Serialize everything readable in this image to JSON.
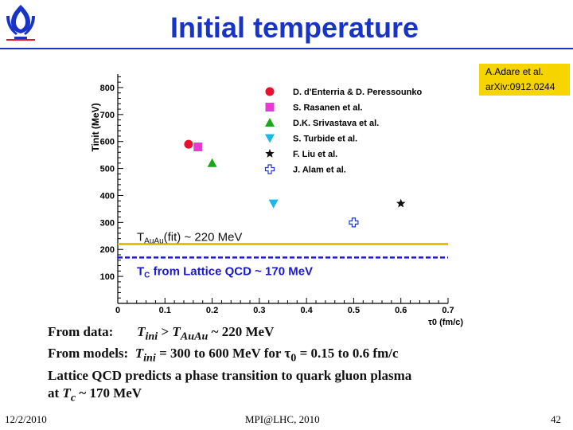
{
  "slide": {
    "title": "Initial temperature",
    "reference": {
      "line1": "A.Adare et al.",
      "line2": "arXiv:0912.0244"
    },
    "footer": {
      "date": "12/2/2010",
      "center": "MPI@LHC, 2010",
      "page": "42"
    },
    "summary": {
      "line1": {
        "a": "From data:",
        "b": "T",
        "b_sub": "ini",
        "c": " > ",
        "d": "T",
        "d_sub": "AuAu",
        "e": " ~ 220 MeV"
      },
      "line2": {
        "a": "From models:",
        "b": "T",
        "b_sub": "ini",
        "c": " = 300 to 600 MeV for ",
        "d": "τ",
        "d_sub": "0",
        "e": " = 0.15 to 0.6 fm/c"
      },
      "line3": "Lattice QCD predicts a phase transition to quark gluon plasma",
      "line4": {
        "a": "at ",
        "b": "T",
        "b_sub": "c",
        "c": " ~ 170 MeV"
      }
    },
    "colors": {
      "title": "#1733c8",
      "reference_box": "#f5d400",
      "fit_line": "#e6c200",
      "lattice_line": "#1a1acc"
    }
  },
  "chart_data": {
    "type": "scatter",
    "xlabel": "τ0 (fm/c)",
    "ylabel": "Tinit (MeV)",
    "xlim": [
      0,
      0.7
    ],
    "ylim": [
      0,
      850
    ],
    "xticks": [
      "0",
      "0.1",
      "0.2",
      "0.3",
      "0.4",
      "0.5",
      "0.6",
      "0.7"
    ],
    "yticks": [
      100,
      200,
      300,
      400,
      500,
      600,
      700,
      800
    ],
    "legend_position": "top-right",
    "series": [
      {
        "name": "D. d'Enterria & D. Peressounko",
        "marker": "circle",
        "color": "#e8102a",
        "x": [
          0.15
        ],
        "y": [
          590
        ]
      },
      {
        "name": "S. Rasanen et al.",
        "marker": "square",
        "color": "#e83ad0",
        "x": [
          0.17
        ],
        "y": [
          580
        ]
      },
      {
        "name": "D.K. Srivastava et al.",
        "marker": "triangle-up",
        "color": "#1aa81a",
        "x": [
          0.2
        ],
        "y": [
          520
        ]
      },
      {
        "name": "S. Turbide et al.",
        "marker": "triangle-down",
        "color": "#1ab8e8",
        "x": [
          0.33
        ],
        "y": [
          370
        ]
      },
      {
        "name": "F. Liu et al.",
        "marker": "star",
        "color": "#111111",
        "x": [
          0.6
        ],
        "y": [
          370
        ]
      },
      {
        "name": "J. Alam et al.",
        "marker": "open-cross",
        "color": "#1a3acc",
        "x": [
          0.5
        ],
        "y": [
          300
        ]
      }
    ],
    "reference_lines": [
      {
        "label": "T",
        "label_sub": "AuAu",
        "label_tail": "(fit) ~ 220 MeV",
        "y": 220,
        "style": "solid",
        "color": "#e6c200"
      },
      {
        "label": "T",
        "label_sub": "C",
        "label_tail": " from Lattice QCD ~ 170 MeV",
        "y": 170,
        "style": "dashed",
        "color": "#1a1acc"
      }
    ]
  }
}
